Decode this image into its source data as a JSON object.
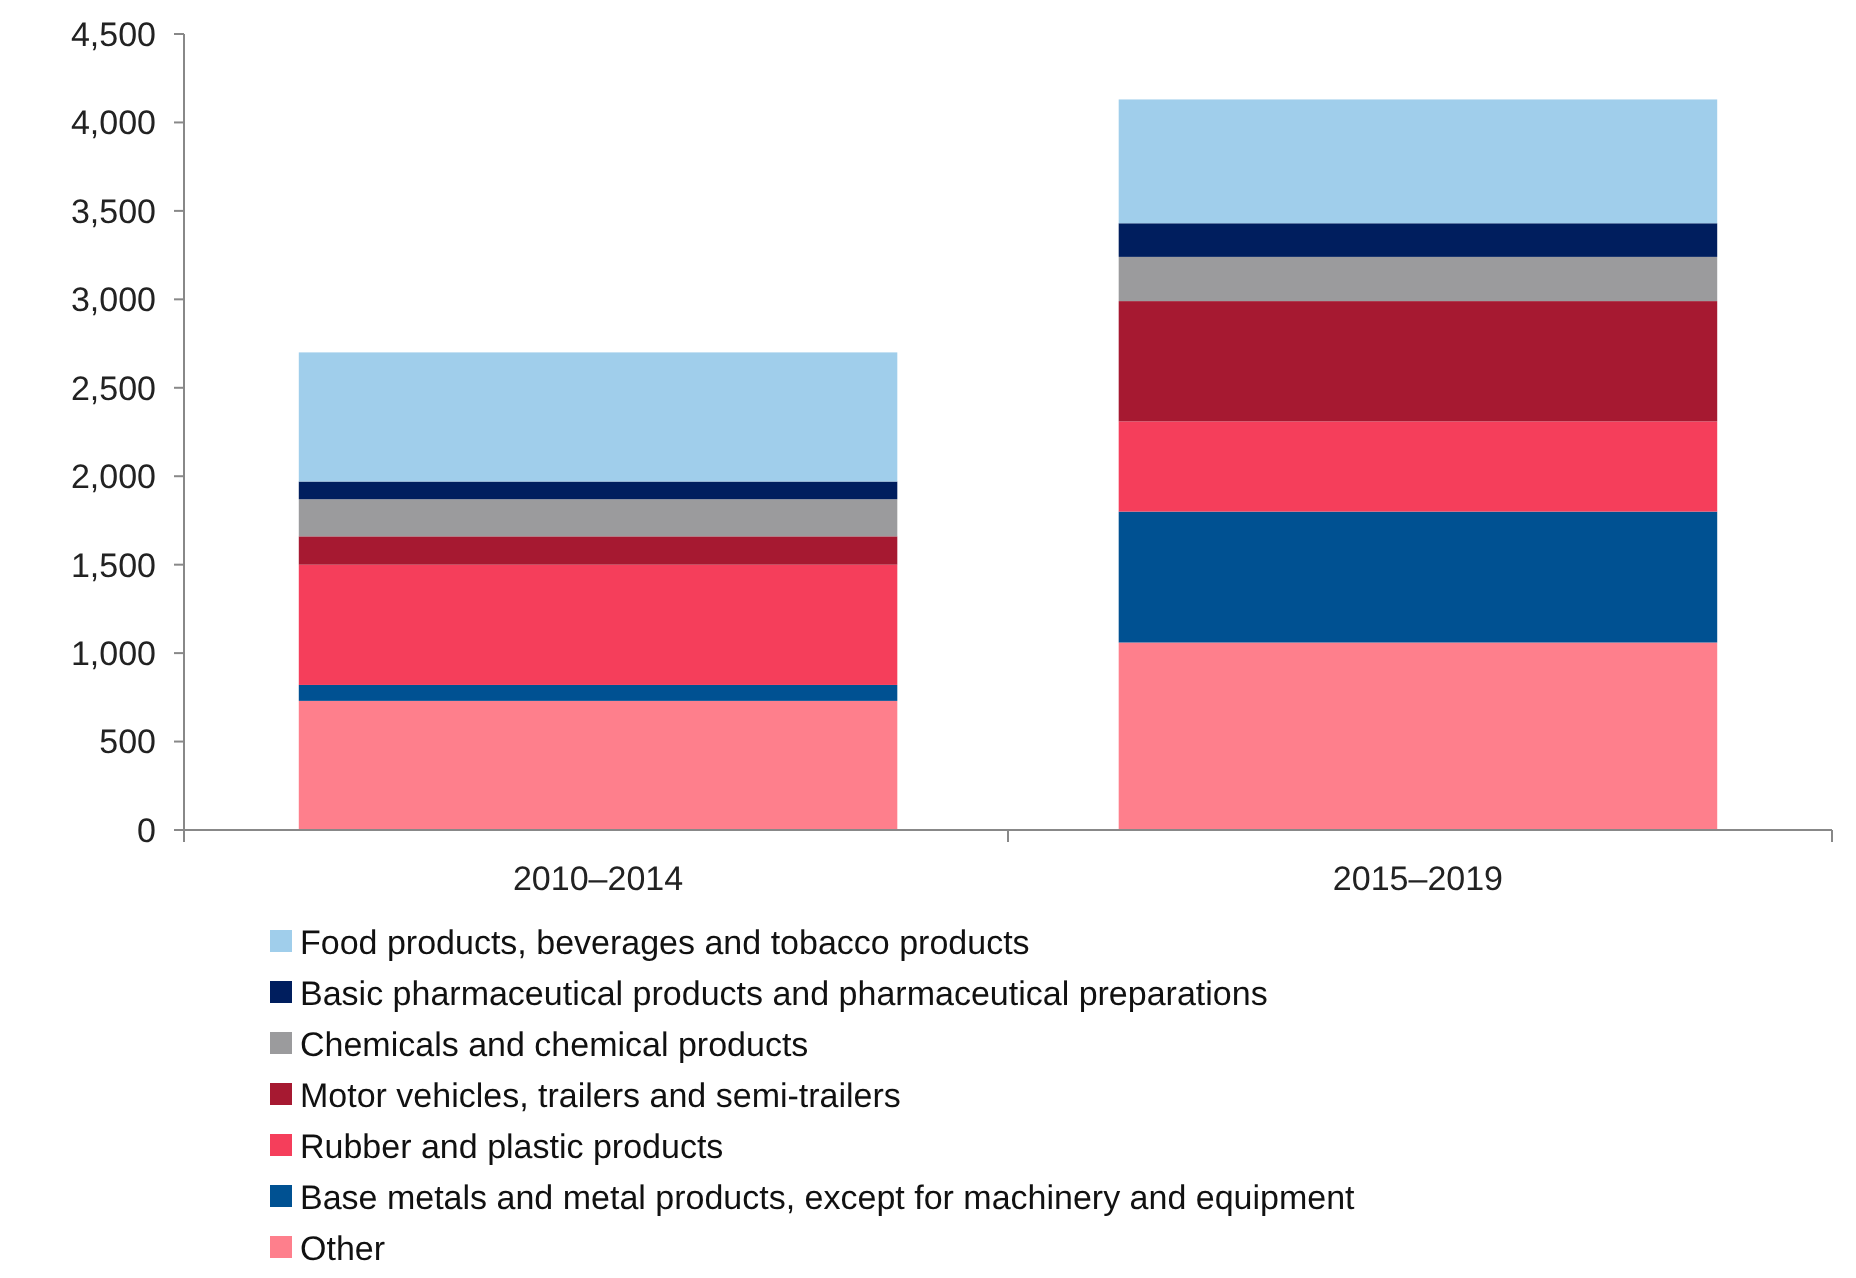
{
  "chart_data": {
    "type": "bar",
    "stacked": true,
    "categories": [
      "2010–2014",
      "2015–2019"
    ],
    "series": [
      {
        "name": "Other",
        "color": "#fe7f8c",
        "values": [
          730,
          1060
        ]
      },
      {
        "name": "Base metals and metal products, except for machinery and equipment",
        "color": "#005192",
        "values": [
          90,
          740
        ]
      },
      {
        "name": "Rubber and plastic products",
        "color": "#f53e5b",
        "values": [
          680,
          510
        ]
      },
      {
        "name": "Motor vehicles, trailers and semi-trailers",
        "color": "#a61931",
        "values": [
          160,
          680
        ]
      },
      {
        "name": "Chemicals and chemical products",
        "color": "#9b9b9d",
        "values": [
          210,
          250
        ]
      },
      {
        "name": "Basic pharmaceutical products and pharmaceutical preparations",
        "color": "#001e5e",
        "values": [
          100,
          190
        ]
      },
      {
        "name": "Food products, beverages and tobacco products",
        "color": "#a0ceeb",
        "values": [
          730,
          700
        ]
      }
    ],
    "ylim": [
      0,
      4500
    ],
    "yticks": [
      0,
      {
        "value": 500,
        "label": "500"
      },
      {
        "value": 1000,
        "label": "1,000"
      },
      {
        "value": 1500,
        "label": "1,500"
      },
      {
        "value": 2000,
        "label": "2,000"
      },
      {
        "value": 2500,
        "label": "2,500"
      },
      {
        "value": 3000,
        "label": "3,000"
      },
      {
        "value": 3500,
        "label": "3,500"
      },
      {
        "value": 4000,
        "label": "4,000"
      },
      {
        "value": 4500,
        "label": "4,500"
      }
    ],
    "grid": false,
    "legend": "bottom"
  }
}
